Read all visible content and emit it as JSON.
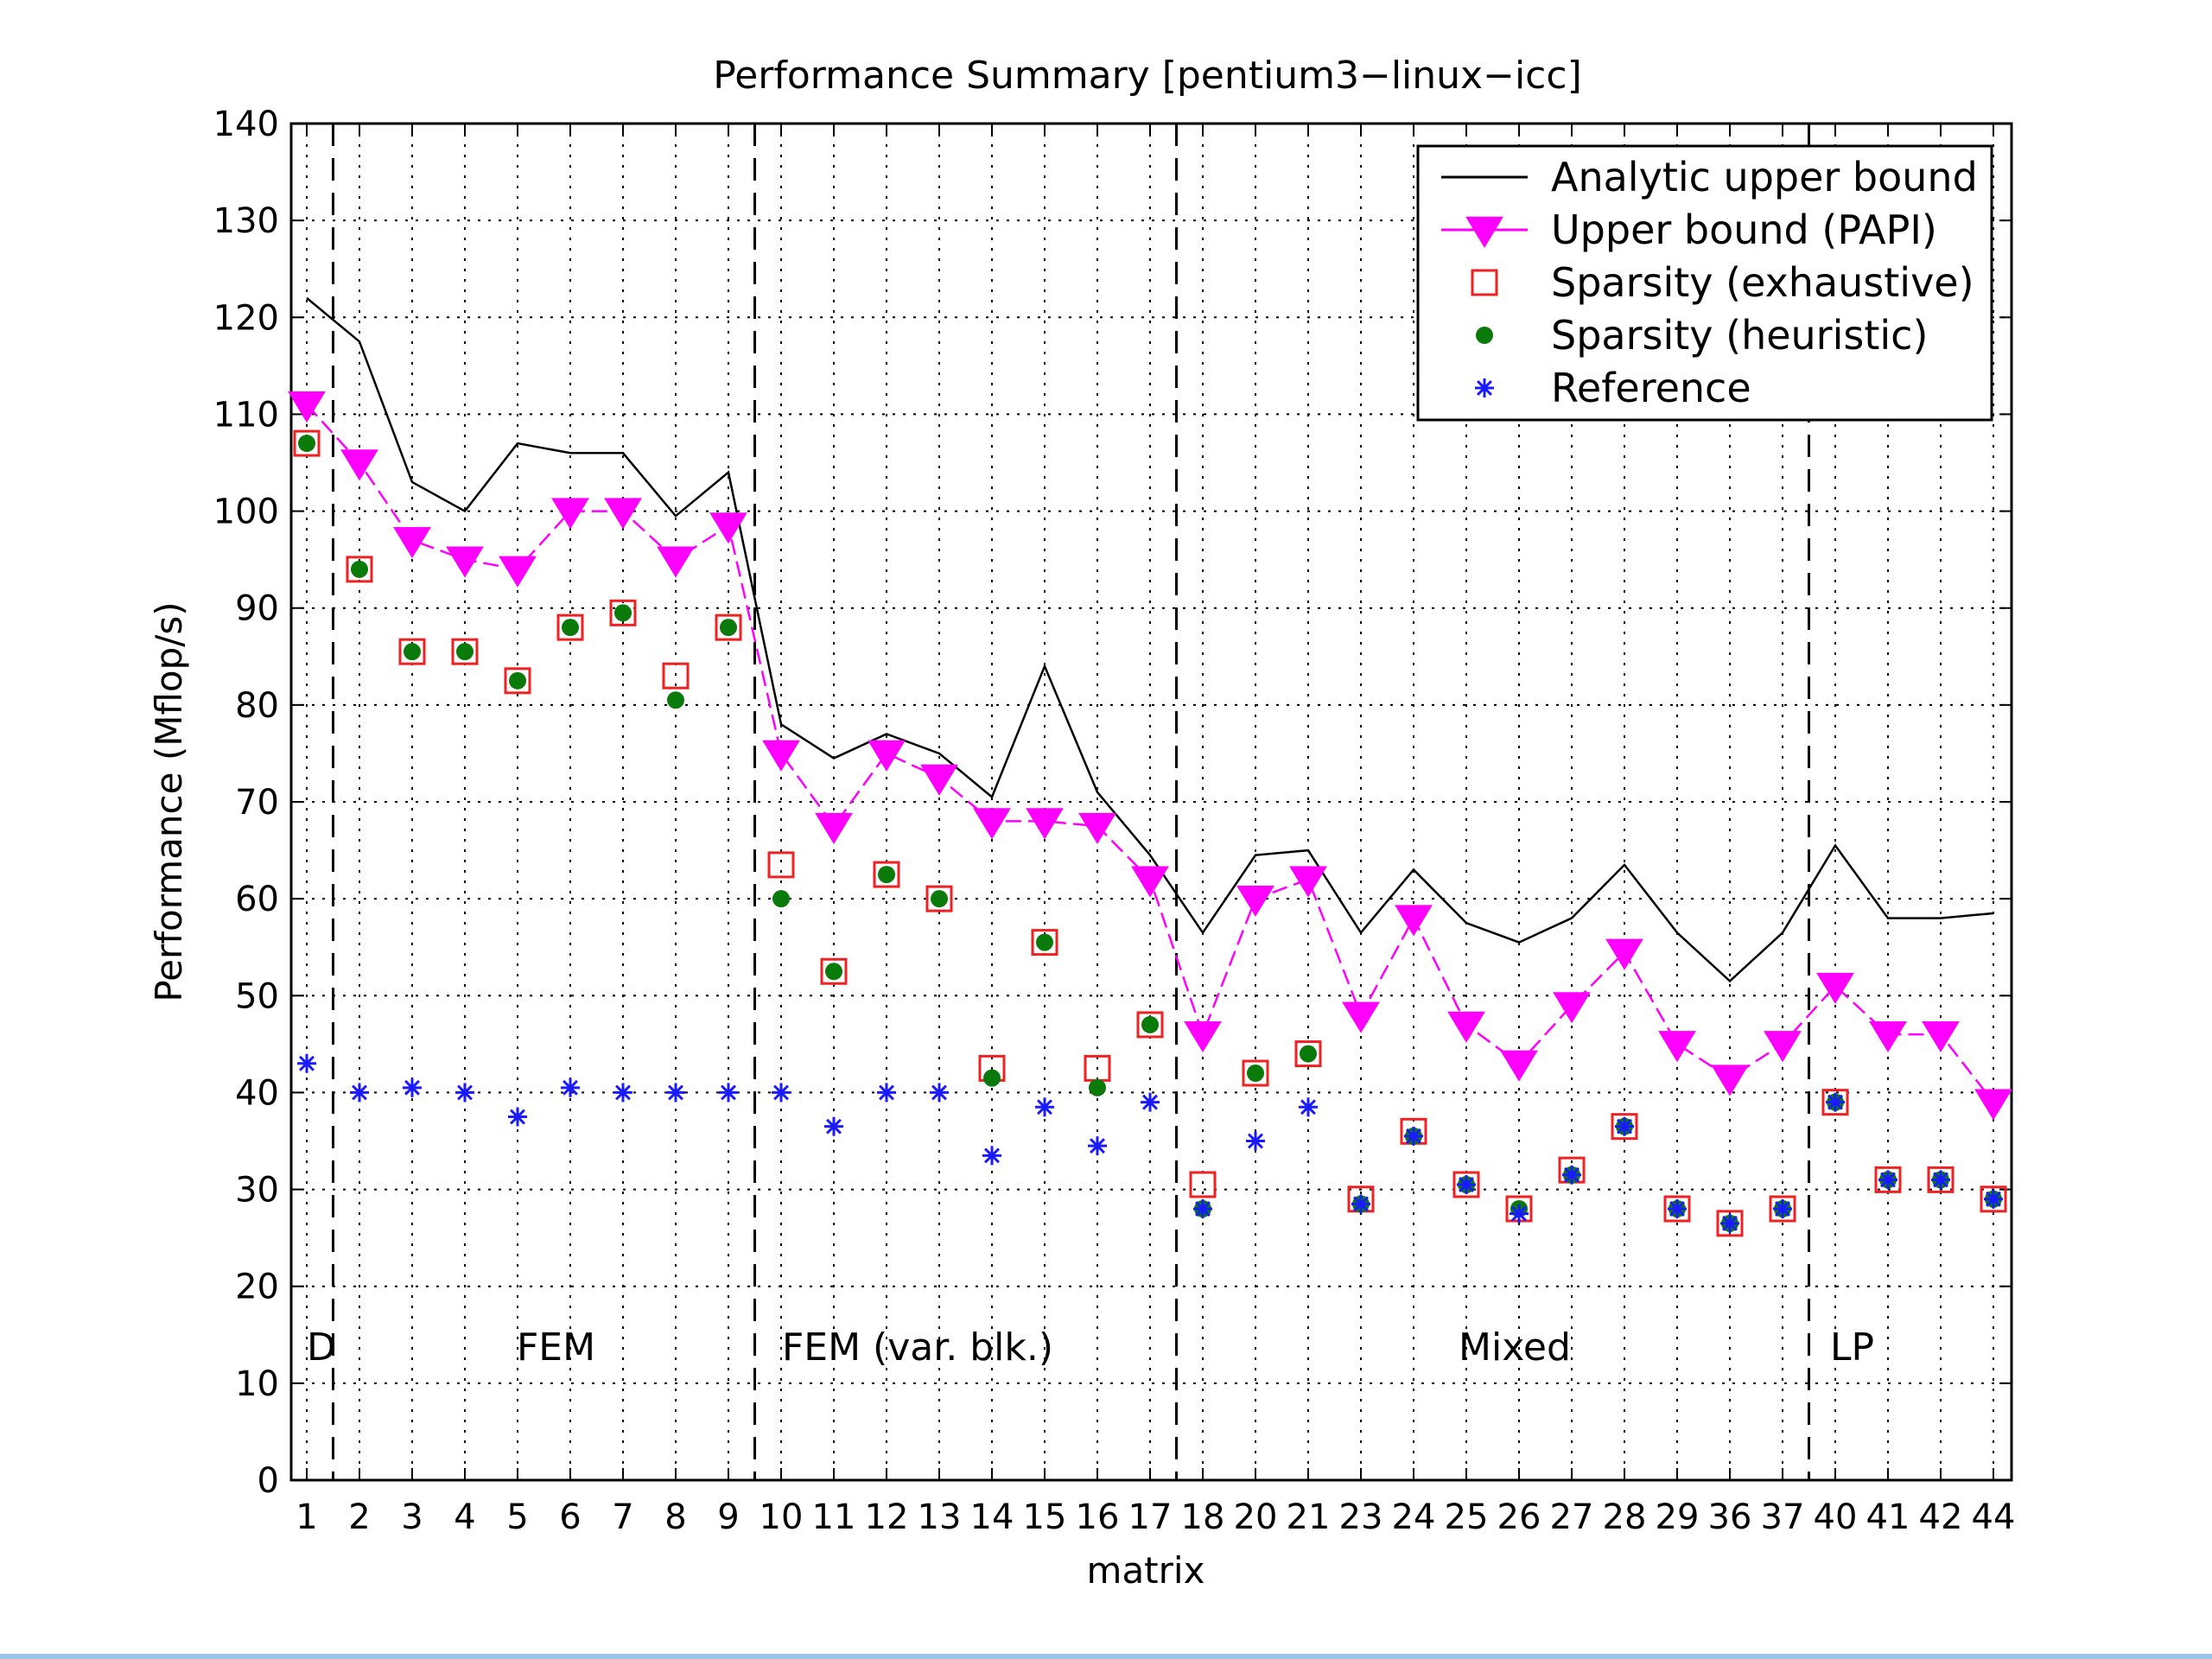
{
  "chart_data": {
    "type": "line",
    "title": "Performance Summary  [pentium3−linux−icc]",
    "xlabel": "matrix",
    "ylabel": "Performance (Mflop/s)",
    "ylim": [
      0,
      140
    ],
    "yticks": [
      0,
      10,
      20,
      30,
      40,
      50,
      60,
      70,
      80,
      90,
      100,
      110,
      120,
      130,
      140
    ],
    "categories": [
      "1",
      "2",
      "3",
      "4",
      "5",
      "6",
      "7",
      "8",
      "9",
      "10",
      "11",
      "12",
      "13",
      "14",
      "15",
      "16",
      "17",
      "18",
      "20",
      "21",
      "23",
      "24",
      "25",
      "26",
      "27",
      "28",
      "29",
      "36",
      "37",
      "40",
      "41",
      "42",
      "44"
    ],
    "grid": true,
    "legend_position": "top-right",
    "series": [
      {
        "name": "Analytic upper bound",
        "style": "line",
        "color": "#000000",
        "values": [
          122,
          117.5,
          103,
          100,
          107,
          106,
          106,
          99.5,
          104,
          78,
          74.5,
          77,
          75,
          70.5,
          84,
          71,
          64.5,
          56.5,
          64.5,
          65,
          56.5,
          63,
          57.5,
          55.5,
          58,
          63.5,
          56.5,
          51.5,
          56.5,
          65.5,
          58,
          58,
          58.5
        ]
      },
      {
        "name": "Upper bound (PAPI)",
        "style": "line-triangle",
        "color": "#ff00ff",
        "values": [
          111,
          105,
          97,
          95,
          94,
          100,
          100,
          95,
          98.5,
          75,
          67.5,
          75,
          72.5,
          68,
          68,
          67.5,
          62,
          46,
          60,
          62,
          48,
          58,
          47,
          43,
          49,
          54.5,
          45,
          41.5,
          45,
          51,
          46,
          46,
          39
        ]
      },
      {
        "name": "Sparsity (exhaustive)",
        "style": "open-square",
        "color": "#ee2222",
        "values": [
          107,
          94,
          85.5,
          85.5,
          82.5,
          88,
          89.5,
          83,
          88,
          63.5,
          52.5,
          62.5,
          60,
          42.5,
          55.5,
          42.5,
          47,
          30.5,
          42,
          44,
          29,
          36,
          30.5,
          28,
          32,
          36.5,
          28,
          26.5,
          28,
          39,
          31,
          31,
          29
        ]
      },
      {
        "name": "Sparsity (heuristic)",
        "style": "filled-circle",
        "color": "#0a7a0a",
        "values": [
          107,
          94,
          85.5,
          85.5,
          82.5,
          88,
          89.5,
          80.5,
          88,
          60,
          52.5,
          62.5,
          60,
          41.5,
          55.5,
          40.5,
          47,
          28,
          42,
          44,
          28.5,
          35.5,
          30.5,
          28,
          31.5,
          36.5,
          28,
          26.5,
          28,
          39,
          31,
          31,
          29
        ]
      },
      {
        "name": "Reference",
        "style": "asterisk",
        "color": "#1a1aff",
        "values": [
          43,
          40,
          40.5,
          40,
          37.5,
          40.5,
          40,
          40,
          40,
          40,
          36.5,
          40,
          40,
          33.5,
          38.5,
          34.5,
          39,
          28,
          35,
          38.5,
          28.5,
          35.5,
          30.5,
          27.5,
          31.5,
          36.5,
          28,
          26.5,
          28,
          39,
          31,
          31,
          29
        ]
      }
    ],
    "separators_after_index": [
      0,
      8,
      16,
      28
    ],
    "group_labels": [
      "D",
      "FEM",
      "FEM (var. blk.)",
      "Mixed",
      "LP"
    ]
  }
}
